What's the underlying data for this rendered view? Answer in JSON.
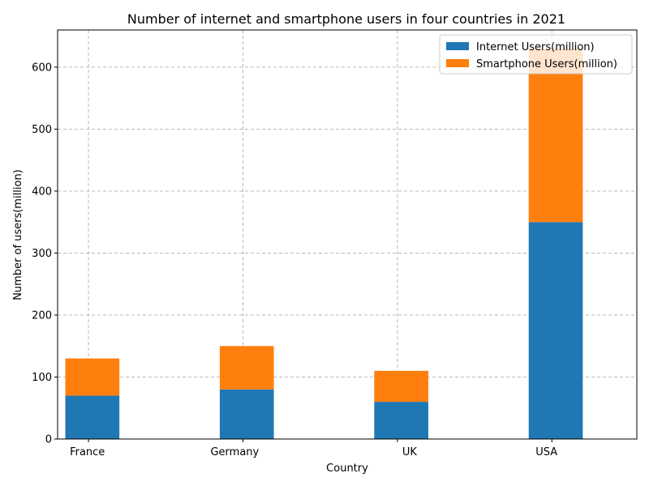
{
  "chart_data": {
    "type": "bar",
    "stacked": true,
    "title": "Number of internet and smartphone users in four countries in 2021",
    "xlabel": "Country",
    "ylabel": "Number of users(million)",
    "categories": [
      "France",
      "Germany",
      "UK",
      "USA"
    ],
    "series": [
      {
        "name": "Internet Users(million)",
        "values": [
          70,
          80,
          60,
          350
        ],
        "color": "#1f77b4"
      },
      {
        "name": "Smartphone Users(million)",
        "values": [
          60,
          70,
          50,
          280
        ],
        "color": "#ff7f0e"
      }
    ],
    "ylim": [
      0,
      660
    ],
    "yticks": [
      0,
      100,
      200,
      300,
      400,
      500,
      600
    ],
    "grid": true,
    "legend": "top-right"
  }
}
